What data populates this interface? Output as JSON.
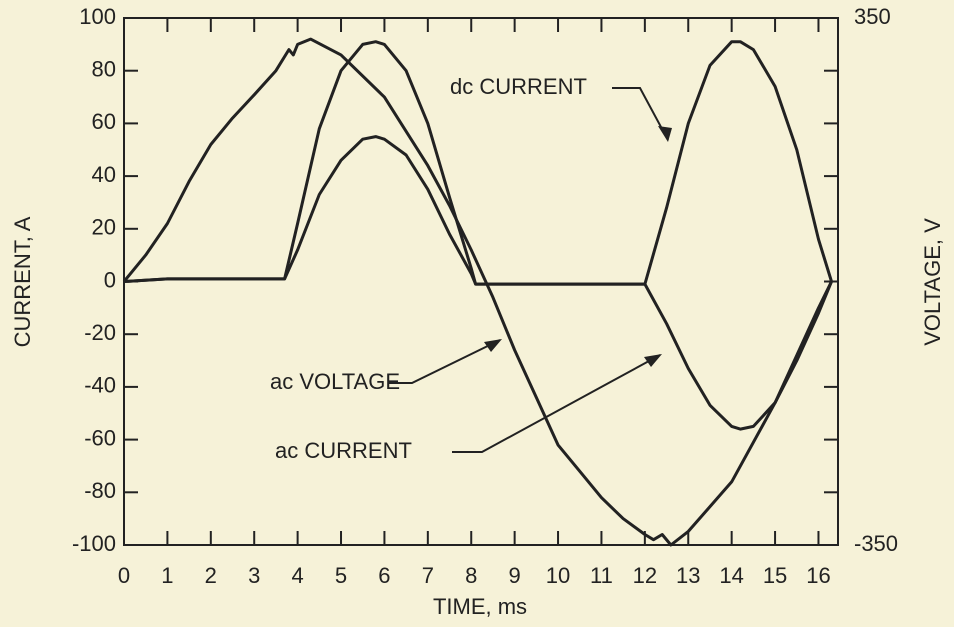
{
  "chart_data": {
    "type": "line",
    "xlabel": "TIME, ms",
    "ylabel": "CURRENT, A",
    "y2label": "VOLTAGE, V",
    "xlim": [
      0,
      16.45
    ],
    "xticks": [
      0,
      1,
      2,
      3,
      4,
      5,
      6,
      7,
      8,
      9,
      10,
      11,
      12,
      13,
      14,
      15,
      16
    ],
    "ylim": [
      -100,
      100
    ],
    "yticks": [
      -100,
      -80,
      -60,
      -40,
      -20,
      0,
      20,
      40,
      60,
      80,
      100
    ],
    "y2lim": [
      -350,
      350
    ],
    "y2ticks": [
      -350,
      350
    ],
    "series": [
      {
        "name": "dc CURRENT",
        "color": "#222222",
        "x": [
          0,
          1,
          2,
          3,
          3.7,
          4,
          4.5,
          5,
          5.5,
          5.8,
          6,
          6.5,
          7,
          7.5,
          8,
          8.1,
          9,
          10,
          11,
          12,
          12.5,
          13,
          13.5,
          14,
          14.2,
          14.5,
          15,
          15.5,
          16,
          16.3
        ],
        "values": [
          0,
          1,
          1,
          1,
          1,
          22,
          58,
          80,
          90,
          91,
          90,
          80,
          60,
          32,
          5,
          -1,
          -1,
          -1,
          -1,
          -1,
          28,
          60,
          82,
          91,
          91,
          88,
          74,
          50,
          16,
          0
        ]
      },
      {
        "name": "ac VOLTAGE",
        "color": "#222222",
        "axis": "y2",
        "x": [
          0,
          0.5,
          1,
          1.5,
          2,
          2.5,
          3,
          3.5,
          3.8,
          3.9,
          4,
          4.3,
          5,
          6,
          7,
          7.5,
          8,
          8.5,
          9,
          9.5,
          10,
          10.5,
          11,
          11.5,
          12,
          12.2,
          12.4,
          12.6,
          13,
          14,
          15,
          16,
          16.3
        ],
        "values": [
          0,
          35,
          77,
          133,
          182,
          217,
          248,
          280,
          308,
          301,
          315,
          322,
          301,
          245,
          154,
          101,
          42,
          -21,
          -91,
          -154,
          -217,
          -252,
          -287,
          -315,
          -336,
          -343,
          -336,
          -350,
          -332,
          -266,
          -161,
          -35,
          0
        ]
      },
      {
        "name": "ac CURRENT",
        "color": "#222222",
        "x": [
          0,
          1,
          2,
          3,
          3.7,
          4,
          4.5,
          5,
          5.5,
          5.8,
          6,
          6.5,
          7,
          7.5,
          8,
          8.1,
          9,
          10,
          11,
          12,
          12.5,
          13,
          13.5,
          14,
          14.2,
          14.5,
          15,
          15.5,
          16,
          16.3
        ],
        "values": [
          0,
          1,
          1,
          1,
          1,
          12,
          33,
          46,
          54,
          55,
          54,
          48,
          35,
          18,
          3,
          -1,
          -1,
          -1,
          -1,
          -1,
          -16,
          -33,
          -47,
          -55,
          -56,
          -55,
          -46,
          -30,
          -12,
          0
        ]
      }
    ]
  }
}
